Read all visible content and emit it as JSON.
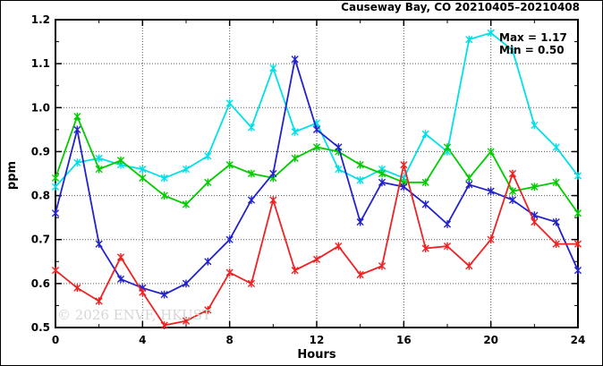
{
  "title": "Causeway Bay, CO 20210405–20210408",
  "annotation": {
    "max_label": "Max = 1.17",
    "min_label": "Min = 0.50"
  },
  "watermark": "© 2026 ENVF, HKUST",
  "colors": {
    "cyan": "#00E0E8",
    "green": "#00CC00",
    "blue": "#2222CC",
    "red": "#EE2222",
    "grid": "#555555",
    "frame": "#000000",
    "watermark": "#D6D6D6"
  },
  "chart_data": {
    "type": "line",
    "title": "Causeway Bay, CO 20210405–20210408",
    "xlabel": "Hours",
    "ylabel": "ppm",
    "xlim": [
      0,
      24
    ],
    "ylim": [
      0.5,
      1.2
    ],
    "x_major_ticks": [
      0,
      4,
      8,
      12,
      16,
      20,
      24
    ],
    "x_minor_ticks": [
      2,
      6,
      10,
      14,
      18,
      22
    ],
    "y_major_ticks": [
      0.5,
      0.6,
      0.7,
      0.8,
      0.9,
      1.0,
      1.1,
      1.2
    ],
    "y_minor_ticks": [
      0.55,
      0.65,
      0.75,
      0.85,
      0.95,
      1.05,
      1.15
    ],
    "grid_x": [
      4,
      8,
      12,
      16,
      20
    ],
    "grid_y": [
      0.6,
      0.7,
      0.8,
      0.9,
      1.0,
      1.1
    ],
    "legend_position": "none",
    "marker": "star",
    "x": [
      0,
      1,
      2,
      3,
      4,
      5,
      6,
      7,
      8,
      9,
      10,
      11,
      12,
      13,
      14,
      15,
      16,
      17,
      18,
      19,
      20,
      21,
      22,
      23,
      24
    ],
    "series": [
      {
        "name": "cyan-line",
        "color_key": "cyan",
        "values": [
          0.82,
          0.875,
          0.885,
          0.87,
          0.86,
          0.84,
          0.86,
          0.89,
          1.01,
          0.955,
          1.09,
          0.945,
          0.965,
          0.86,
          0.835,
          0.86,
          0.84,
          0.94,
          0.9,
          1.155,
          1.17,
          1.13,
          0.96,
          0.91,
          0.845
        ]
      },
      {
        "name": "green-line",
        "color_key": "green",
        "values": [
          0.84,
          0.98,
          0.86,
          0.88,
          0.84,
          0.8,
          0.78,
          0.83,
          0.87,
          0.85,
          0.84,
          0.885,
          0.91,
          0.9,
          0.87,
          0.85,
          0.83,
          0.83,
          0.91,
          0.84,
          0.9,
          0.81,
          0.82,
          0.83,
          0.76
        ]
      },
      {
        "name": "blue-line",
        "color_key": "blue",
        "values": [
          0.76,
          0.95,
          0.69,
          0.61,
          0.59,
          0.575,
          0.6,
          0.65,
          0.7,
          0.79,
          0.85,
          1.11,
          0.95,
          0.91,
          0.74,
          0.83,
          0.82,
          0.78,
          0.735,
          0.825,
          0.81,
          0.79,
          0.755,
          0.74,
          0.63
        ]
      },
      {
        "name": "red-line",
        "color_key": "red",
        "values": [
          0.63,
          0.59,
          0.56,
          0.66,
          0.58,
          0.505,
          0.515,
          0.54,
          0.625,
          0.6,
          0.79,
          0.63,
          0.655,
          0.685,
          0.62,
          0.64,
          0.87,
          0.68,
          0.685,
          0.64,
          0.7,
          0.85,
          0.74,
          0.69,
          0.69
        ]
      }
    ],
    "annotations": [
      "Max = 1.17",
      "Min = 0.50"
    ]
  }
}
